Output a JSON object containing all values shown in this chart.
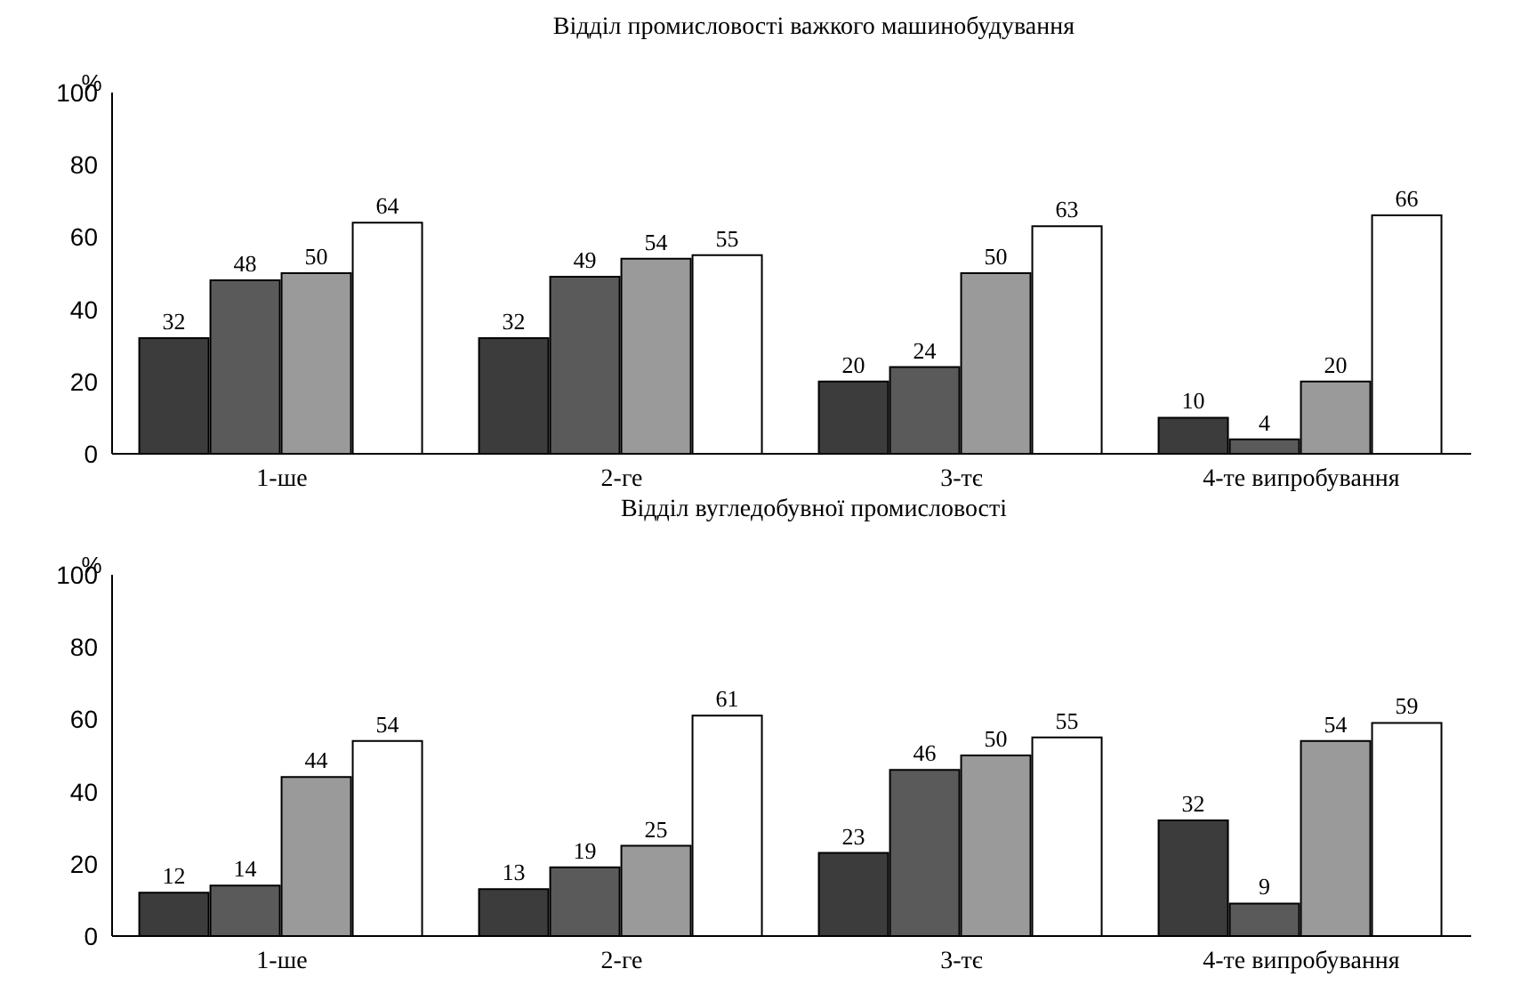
{
  "chart_data": [
    {
      "type": "bar",
      "title": "Відділ промисловості важкого машинобудування",
      "ylabel": "%",
      "categories": [
        "1-ше",
        "2-ге",
        "3-тє",
        "4-те випробування"
      ],
      "ylim": [
        0,
        100
      ],
      "yticks": [
        0,
        20,
        40,
        60,
        80,
        100
      ],
      "grid": false,
      "legend": false,
      "data_labels": true,
      "series": [
        {
          "color": "#3c3c3c",
          "values": [
            32,
            32,
            20,
            10
          ]
        },
        {
          "color": "#5a5a5a",
          "values": [
            48,
            49,
            24,
            4
          ]
        },
        {
          "color": "#9a9a9a",
          "values": [
            50,
            54,
            50,
            20
          ]
        },
        {
          "color": "#ffffff",
          "values": [
            64,
            55,
            63,
            66
          ]
        }
      ]
    },
    {
      "type": "bar",
      "title": "Відділ вугледобувної промисловості",
      "ylabel": "%",
      "categories": [
        "1-ше",
        "2-ге",
        "3-тє",
        "4-те випробування"
      ],
      "ylim": [
        0,
        100
      ],
      "yticks": [
        0,
        20,
        40,
        60,
        80,
        100
      ],
      "grid": false,
      "legend": false,
      "data_labels": true,
      "series": [
        {
          "color": "#3c3c3c",
          "values": [
            12,
            13,
            23,
            32
          ]
        },
        {
          "color": "#5a5a5a",
          "values": [
            14,
            19,
            46,
            9
          ]
        },
        {
          "color": "#9a9a9a",
          "values": [
            44,
            25,
            50,
            54
          ]
        },
        {
          "color": "#ffffff",
          "values": [
            54,
            61,
            55,
            59
          ]
        }
      ]
    }
  ]
}
